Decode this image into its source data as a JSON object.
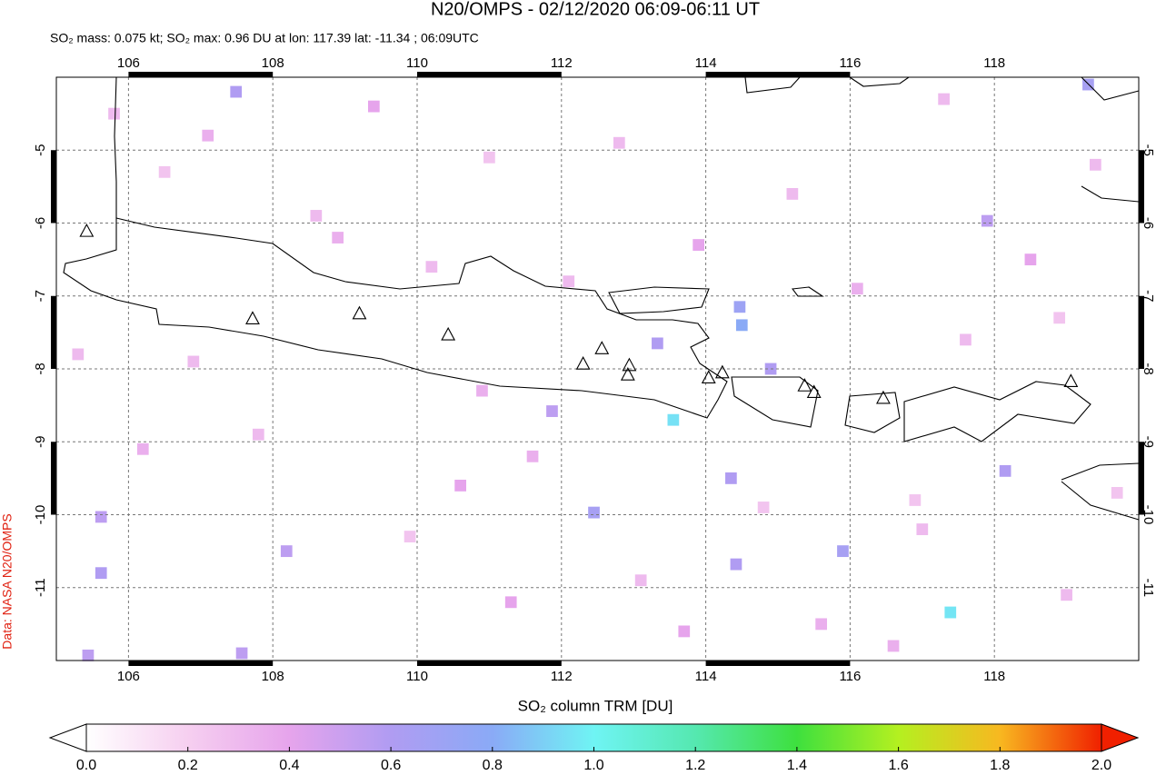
{
  "chart_data": {
    "type": "map",
    "title": "N20/OMPS - 02/12/2020 06:09-06:11 UT",
    "subtitle": "SO₂ mass: 0.075 kt; SO₂ max: 0.96 DU at lon: 117.39 lat: -11.34 ; 06:09UTC",
    "colorbar_label": "SO₂ column TRM [DU]",
    "credit": "Data: NASA N20/OMPS",
    "xlim": [
      105,
      120
    ],
    "ylim": [
      -12,
      -4
    ],
    "xticks": [
      106,
      108,
      110,
      112,
      114,
      116,
      118
    ],
    "yticks": [
      -5,
      -6,
      -7,
      -8,
      -9,
      -10,
      -11
    ],
    "grid": true,
    "colorbar_lim": [
      0,
      2
    ],
    "colorbar_ticks": [
      {
        "value": 0,
        "label": "0.0"
      },
      0.2,
      0.4,
      0.6,
      0.8,
      {
        "value": 1,
        "label": "1.0"
      },
      1.2,
      1.4,
      1.6,
      1.8,
      {
        "value": 2,
        "label": "2.0"
      }
    ],
    "volcanoes": {
      "lon": [
        105.42,
        107.72,
        109.2,
        110.43,
        112.3,
        112.56,
        112.94,
        112.92,
        114.04,
        114.23,
        115.37,
        115.5,
        116.46,
        119.06
      ],
      "lat": [
        -6.12,
        -7.32,
        -7.25,
        -7.54,
        -7.94,
        -7.73,
        -7.96,
        -8.09,
        -8.13,
        -8.06,
        -8.24,
        -8.33,
        -8.41,
        -8.18
      ]
    },
    "cells": {
      "lon": [
        107.49,
        119.3,
        114.47,
        114.5,
        113.55,
        117.39,
        113.33,
        114.9,
        115.9,
        114.42,
        105.62,
        105.62,
        114.35,
        112.45,
        118.15,
        117.9,
        107.57,
        105.44,
        108.19,
        111.87,
        105.8,
        106.5,
        107.1,
        108.6,
        109.4,
        110.2,
        111.0,
        111.6,
        112.8,
        113.9,
        115.2,
        116.1,
        116.9,
        117.6,
        118.5,
        119.4,
        106.2,
        107.8,
        109.9,
        111.3,
        113.1,
        115.6,
        117.0,
        118.9,
        106.9,
        108.9,
        110.6,
        112.1,
        114.8,
        116.6,
        119.0,
        105.3,
        110.9,
        113.7,
        117.3,
        119.7
      ],
      "lat": [
        -4.2,
        -4.1,
        -7.15,
        -7.4,
        -8.7,
        -11.34,
        -7.65,
        -8.0,
        -10.5,
        -10.68,
        -10.8,
        -10.03,
        -9.5,
        -9.97,
        -9.4,
        -5.97,
        -11.9,
        -11.93,
        -10.5,
        -8.58,
        -4.5,
        -5.3,
        -4.8,
        -5.9,
        -4.4,
        -6.6,
        -5.1,
        -9.2,
        -4.9,
        -6.3,
        -5.6,
        -6.9,
        -9.8,
        -7.6,
        -6.5,
        -5.2,
        -9.1,
        -8.9,
        -10.3,
        -11.2,
        -10.9,
        -11.5,
        -10.2,
        -7.3,
        -7.9,
        -6.2,
        -9.6,
        -6.8,
        -9.9,
        -11.8,
        -11.1,
        -7.8,
        -8.3,
        -11.6,
        -4.3,
        -9.7
      ],
      "values": [
        0.6,
        0.65,
        0.7,
        0.8,
        0.95,
        0.96,
        0.6,
        0.6,
        0.65,
        0.6,
        0.6,
        0.55,
        0.6,
        0.65,
        0.6,
        0.55,
        0.55,
        0.55,
        0.55,
        0.55,
        0.3,
        0.25,
        0.35,
        0.3,
        0.4,
        0.3,
        0.25,
        0.35,
        0.3,
        0.4,
        0.3,
        0.35,
        0.25,
        0.3,
        0.4,
        0.3,
        0.35,
        0.3,
        0.25,
        0.4,
        0.3,
        0.35,
        0.3,
        0.25,
        0.3,
        0.35,
        0.4,
        0.3,
        0.25,
        0.35,
        0.3,
        0.3,
        0.35,
        0.4,
        0.3,
        0.25
      ]
    }
  }
}
